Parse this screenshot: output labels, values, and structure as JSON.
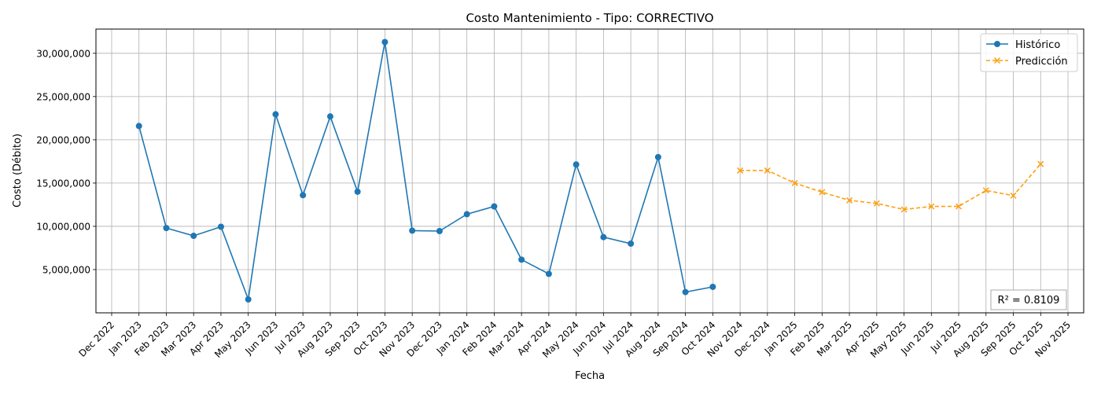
{
  "chart_data": {
    "type": "line",
    "title": "Costo Mantenimiento - Tipo: CORRECTIVO",
    "xlabel": "Fecha",
    "ylabel": "Costo (Débito)",
    "ylim": [
      0,
      32800000
    ],
    "yticks": [
      5000000,
      10000000,
      15000000,
      20000000,
      25000000,
      30000000
    ],
    "ytick_labels": [
      "5,000,000",
      "10,000,000",
      "15,000,000",
      "20,000,000",
      "25,000,000",
      "30,000,000"
    ],
    "xtick_labels": [
      "Dec 2022",
      "Jan 2023",
      "Feb 2023",
      "Mar 2023",
      "Apr 2023",
      "May 2023",
      "Jun 2023",
      "Jul 2023",
      "Aug 2023",
      "Sep 2023",
      "Oct 2023",
      "Nov 2023",
      "Dec 2023",
      "Jan 2024",
      "Feb 2024",
      "Mar 2024",
      "Apr 2024",
      "May 2024",
      "Jun 2024",
      "Jul 2024",
      "Aug 2024",
      "Sep 2024",
      "Oct 2024",
      "Nov 2024",
      "Dec 2024",
      "Jan 2025",
      "Feb 2025",
      "Mar 2025",
      "Apr 2025",
      "May 2025",
      "Jun 2025",
      "Jul 2025",
      "Aug 2025",
      "Sep 2025",
      "Oct 2025",
      "Nov 2025"
    ],
    "grid": true,
    "legend_position": "top-right",
    "series": [
      {
        "name": "Histórico",
        "color": "#1f77b4",
        "style": "solid",
        "marker": "circle",
        "x": [
          "Jan 2023",
          "Feb 2023",
          "Mar 2023",
          "Apr 2023",
          "May 2023",
          "Jun 2023",
          "Jul 2023",
          "Aug 2023",
          "Sep 2023",
          "Oct 2023",
          "Nov 2023",
          "Dec 2023",
          "Jan 2024",
          "Feb 2024",
          "Mar 2024",
          "Apr 2024",
          "May 2024",
          "Jun 2024",
          "Jul 2024",
          "Aug 2024",
          "Sep 2024",
          "Oct 2024"
        ],
        "values": [
          21600000,
          9800000,
          8900000,
          9950000,
          1550000,
          22950000,
          13600000,
          22700000,
          14000000,
          31300000,
          9500000,
          9450000,
          11400000,
          12300000,
          6150000,
          4500000,
          17150000,
          8750000,
          8000000,
          18000000,
          2400000,
          3000000
        ]
      },
      {
        "name": "Predicción",
        "color": "#ff9f0e",
        "style": "dashed",
        "marker": "x",
        "x": [
          "Nov 2024",
          "Dec 2024",
          "Jan 2025",
          "Feb 2025",
          "Mar 2025",
          "Apr 2025",
          "May 2025",
          "Jun 2025",
          "Jul 2025",
          "Aug 2025",
          "Sep 2025",
          "Oct 2025"
        ],
        "values": [
          16450000,
          16450000,
          15000000,
          13950000,
          13000000,
          12650000,
          11950000,
          12300000,
          12300000,
          14150000,
          13550000,
          17200000
        ]
      }
    ],
    "annotation": "R² = 0.8109"
  }
}
